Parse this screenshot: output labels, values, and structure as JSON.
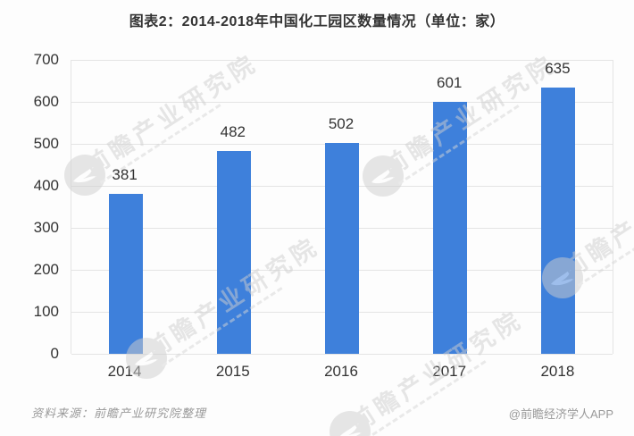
{
  "title": "图表2：2014-2018年中国化工园区数量情况（单位：家）",
  "chart_data": {
    "type": "bar",
    "title": "图表2：2014-2018年中国化工园区数量情况（单位：家）",
    "unit_label": "单位：家",
    "categories": [
      "2014",
      "2015",
      "2016",
      "2017",
      "2018"
    ],
    "values": [
      381,
      482,
      502,
      601,
      635
    ],
    "xlabel": "",
    "ylabel": "",
    "ylim": [
      0,
      700
    ],
    "yticks": [
      0,
      100,
      200,
      300,
      400,
      500,
      600,
      700
    ],
    "grid": "horizontal",
    "legend": "none",
    "value_labels_shown": true,
    "bar_color": "#3E80DB"
  },
  "watermark": {
    "text": "前瞻产业研究院"
  },
  "footer": {
    "source": "资料来源：前瞻产业研究院整理",
    "credit": "@前瞻经济学人APP"
  },
  "colors": {
    "bar": "#3E80DB",
    "grid": "#E4E4E4",
    "text": "#333333",
    "footer_text": "#999999",
    "watermark": "#CFCFCF",
    "background": "#FDFDFD"
  }
}
